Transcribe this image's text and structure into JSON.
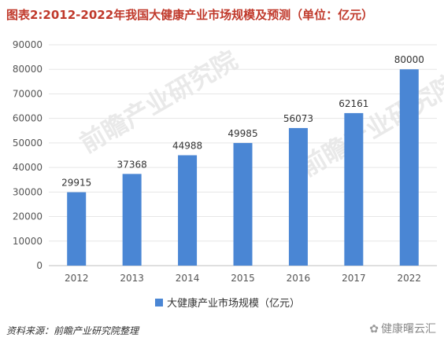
{
  "title": "图表2:2012-2022年我国大健康产业市场规模及预测（单位：亿元）",
  "source": "资料来源：前瞻产业研究院整理",
  "brand": "健康曙云汇",
  "watermark": "前瞻产业研究院",
  "colors": {
    "bar": "#4a86d4",
    "title": "#c0392b",
    "grid": "#e6e6e6"
  },
  "chart_data": {
    "type": "bar",
    "categories": [
      "2012",
      "2013",
      "2014",
      "2015",
      "2016",
      "2017",
      "2022"
    ],
    "series": [
      {
        "name": "大健康产业市场规模（亿元）",
        "values": [
          29915,
          37368,
          44988,
          49985,
          56073,
          62161,
          80000
        ]
      }
    ],
    "ylim": [
      0,
      90000
    ],
    "yticks": [
      "0",
      "10000",
      "20000",
      "30000",
      "40000",
      "50000",
      "60000",
      "70000",
      "80000",
      "90000"
    ],
    "grid": true,
    "legend": "bottom"
  }
}
